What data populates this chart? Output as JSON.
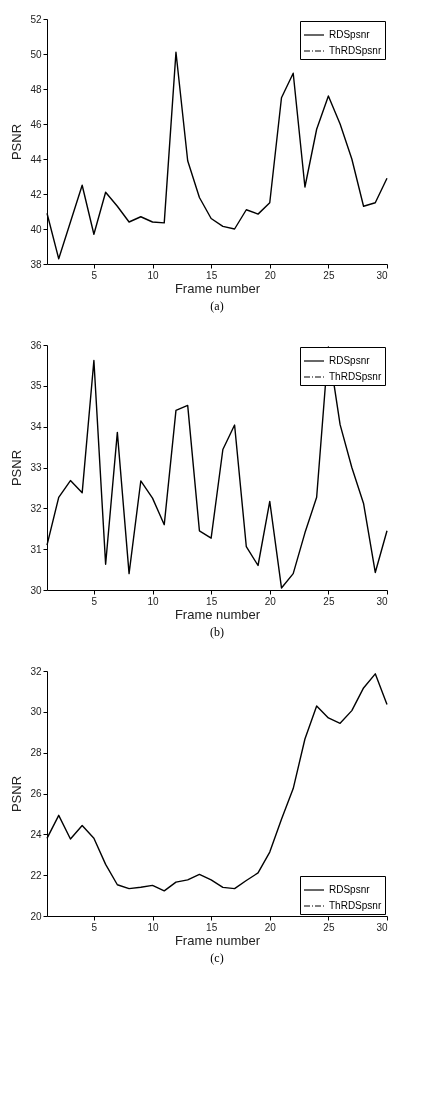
{
  "chart_data": [
    {
      "type": "line",
      "xlabel": "Frame number",
      "ylabel": "PSNR",
      "annotations": [
        "(a)"
      ],
      "x": [
        1,
        2,
        3,
        4,
        5,
        6,
        7,
        8,
        9,
        10,
        11,
        12,
        13,
        14,
        15,
        16,
        17,
        18,
        19,
        20,
        21,
        22,
        23,
        24,
        25,
        26,
        27,
        28,
        29,
        30
      ],
      "xlim": [
        1,
        30
      ],
      "xticks": [
        5,
        10,
        15,
        20,
        25,
        30
      ],
      "ylim": [
        38,
        52
      ],
      "yticks": [
        38,
        40,
        42,
        44,
        46,
        48,
        50,
        52
      ],
      "grid": false,
      "legend": "top right",
      "marker": "none",
      "series": [
        {
          "name": "RDSpsnr",
          "color": "#000000",
          "line_style": "solid",
          "values": [
            40.9,
            38.3,
            40.4,
            42.5,
            39.7,
            42.1,
            41.3,
            40.4,
            40.7,
            40.4,
            40.35,
            50.1,
            43.9,
            41.8,
            40.6,
            40.15,
            40.0,
            41.1,
            40.85,
            41.5,
            47.5,
            48.9,
            42.4,
            45.7,
            47.6,
            46.0,
            44.0,
            41.3,
            41.5,
            42.9
          ]
        },
        {
          "name": "ThRDSpsnr",
          "color": "#000000",
          "line_style": "dashdot",
          "values": [
            null,
            null,
            null,
            null,
            null,
            null,
            null,
            null,
            null,
            null,
            null,
            null,
            null,
            null,
            null,
            null,
            null,
            null,
            null,
            null,
            null,
            null,
            null,
            null,
            null,
            null,
            null,
            null,
            null,
            null
          ]
        }
      ]
    },
    {
      "type": "line",
      "xlabel": "Frame number",
      "ylabel": "PSNR",
      "annotations": [
        "(b)"
      ],
      "x": [
        1,
        2,
        3,
        4,
        5,
        6,
        7,
        8,
        9,
        10,
        11,
        12,
        13,
        14,
        15,
        16,
        17,
        18,
        19,
        20,
        21,
        22,
        23,
        24,
        25,
        26,
        27,
        28,
        29,
        30
      ],
      "xlim": [
        1,
        30
      ],
      "xticks": [
        5,
        10,
        15,
        20,
        25,
        30
      ],
      "ylim": [
        30,
        36
      ],
      "yticks": [
        30,
        31,
        32,
        33,
        34,
        35,
        36
      ],
      "grid": false,
      "legend": "top right",
      "marker": "none",
      "series": [
        {
          "name": "RDSpsnr",
          "color": "#000000",
          "line_style": "solid",
          "values": [
            31.1,
            32.27,
            32.68,
            32.38,
            35.62,
            30.63,
            33.86,
            30.4,
            32.67,
            32.25,
            31.6,
            34.4,
            34.52,
            31.45,
            31.27,
            33.44,
            34.04,
            31.06,
            30.6,
            32.17,
            30.05,
            30.4,
            31.4,
            32.27,
            35.95,
            34.05,
            33.0,
            32.12,
            30.43,
            31.45
          ]
        },
        {
          "name": "ThRDSpsnr",
          "color": "#000000",
          "line_style": "dashdot",
          "values": [
            null,
            null,
            null,
            null,
            null,
            null,
            null,
            null,
            null,
            null,
            null,
            null,
            null,
            null,
            null,
            null,
            null,
            null,
            null,
            null,
            null,
            null,
            null,
            null,
            null,
            null,
            null,
            null,
            null,
            null
          ]
        }
      ]
    },
    {
      "type": "line",
      "xlabel": "Frame number",
      "ylabel": "PSNR",
      "annotations": [
        "(c)"
      ],
      "x": [
        1,
        2,
        3,
        4,
        5,
        6,
        7,
        8,
        9,
        10,
        11,
        12,
        13,
        14,
        15,
        16,
        17,
        18,
        19,
        20,
        21,
        22,
        23,
        24,
        25,
        26,
        27,
        28,
        29,
        30
      ],
      "xlim": [
        1,
        30
      ],
      "xticks": [
        5,
        10,
        15,
        20,
        25,
        30
      ],
      "ylim": [
        20,
        32
      ],
      "yticks": [
        20,
        22,
        24,
        26,
        28,
        30,
        32
      ],
      "grid": false,
      "legend": "bottom right",
      "marker": "none",
      "series": [
        {
          "name": "RDSpsnr",
          "color": "#000000",
          "line_style": "solid",
          "values": [
            23.8,
            24.93,
            23.77,
            24.43,
            23.81,
            22.53,
            21.53,
            21.34,
            21.41,
            21.5,
            21.23,
            21.66,
            21.77,
            22.04,
            21.77,
            21.4,
            21.34,
            21.74,
            22.11,
            23.13,
            24.74,
            26.24,
            28.67,
            30.29,
            29.7,
            29.44,
            30.06,
            31.17,
            31.86,
            30.36
          ]
        },
        {
          "name": "ThRDSpsnr",
          "color": "#000000",
          "line_style": "dashdot",
          "values": [
            null,
            null,
            null,
            null,
            null,
            null,
            null,
            null,
            null,
            null,
            null,
            null,
            null,
            null,
            null,
            null,
            null,
            null,
            null,
            null,
            null,
            null,
            null,
            null,
            null,
            null,
            null,
            null,
            null,
            null
          ]
        }
      ]
    }
  ]
}
